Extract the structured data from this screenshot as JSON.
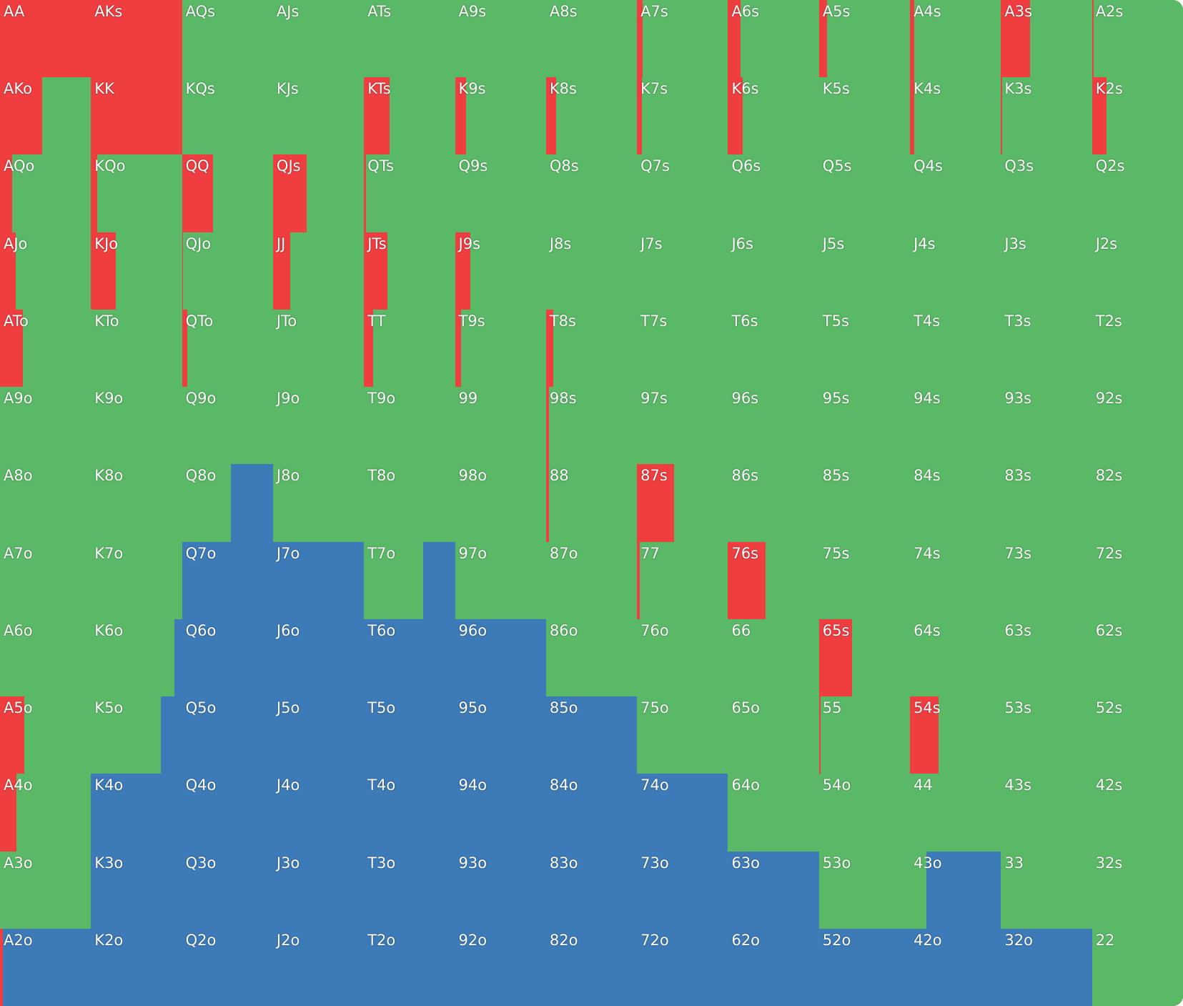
{
  "colors": {
    "raise": "#ef3d40",
    "call": "#5ab966",
    "fold": "#3d7ab8"
  },
  "grid": {
    "rows": [
      [
        {
          "hand": "AA",
          "raise": 100,
          "call": 0,
          "fold": 0
        },
        {
          "hand": "AKs",
          "raise": 100,
          "call": 0,
          "fold": 0
        },
        {
          "hand": "AQs",
          "raise": 0,
          "call": 100,
          "fold": 0
        },
        {
          "hand": "AJs",
          "raise": 0,
          "call": 100,
          "fold": 0
        },
        {
          "hand": "ATs",
          "raise": 0,
          "call": 100,
          "fold": 0
        },
        {
          "hand": "A9s",
          "raise": 0,
          "call": 100,
          "fold": 0
        },
        {
          "hand": "A8s",
          "raise": 0,
          "call": 100,
          "fold": 0
        },
        {
          "hand": "A7s",
          "raise": 6,
          "call": 94,
          "fold": 0
        },
        {
          "hand": "A6s",
          "raise": 14,
          "call": 86,
          "fold": 0
        },
        {
          "hand": "A5s",
          "raise": 9,
          "call": 91,
          "fold": 0
        },
        {
          "hand": "A4s",
          "raise": 5,
          "call": 95,
          "fold": 0
        },
        {
          "hand": "A3s",
          "raise": 32,
          "call": 68,
          "fold": 0
        },
        {
          "hand": "A2s",
          "raise": 2,
          "call": 98,
          "fold": 0
        }
      ],
      [
        {
          "hand": "AKo",
          "raise": 46,
          "call": 54,
          "fold": 0
        },
        {
          "hand": "KK",
          "raise": 100,
          "call": 0,
          "fold": 0
        },
        {
          "hand": "KQs",
          "raise": 0,
          "call": 100,
          "fold": 0
        },
        {
          "hand": "KJs",
          "raise": 0,
          "call": 100,
          "fold": 0
        },
        {
          "hand": "KTs",
          "raise": 28,
          "call": 72,
          "fold": 0
        },
        {
          "hand": "K9s",
          "raise": 12,
          "call": 88,
          "fold": 0
        },
        {
          "hand": "K8s",
          "raise": 11,
          "call": 89,
          "fold": 0
        },
        {
          "hand": "K7s",
          "raise": 5,
          "call": 95,
          "fold": 0
        },
        {
          "hand": "K6s",
          "raise": 16,
          "call": 84,
          "fold": 0
        },
        {
          "hand": "K5s",
          "raise": 0,
          "call": 100,
          "fold": 0
        },
        {
          "hand": "K4s",
          "raise": 5,
          "call": 95,
          "fold": 0
        },
        {
          "hand": "K3s",
          "raise": 1,
          "call": 99,
          "fold": 0
        },
        {
          "hand": "K2s",
          "raise": 16,
          "call": 84,
          "fold": 0
        }
      ],
      [
        {
          "hand": "AQo",
          "raise": 13,
          "call": 87,
          "fold": 0
        },
        {
          "hand": "KQo",
          "raise": 7,
          "call": 93,
          "fold": 0
        },
        {
          "hand": "QQ",
          "raise": 34,
          "call": 66,
          "fold": 0
        },
        {
          "hand": "QJs",
          "raise": 37,
          "call": 63,
          "fold": 0
        },
        {
          "hand": "QTs",
          "raise": 2,
          "call": 98,
          "fold": 0
        },
        {
          "hand": "Q9s",
          "raise": 0,
          "call": 100,
          "fold": 0
        },
        {
          "hand": "Q8s",
          "raise": 0,
          "call": 100,
          "fold": 0
        },
        {
          "hand": "Q7s",
          "raise": 0,
          "call": 100,
          "fold": 0
        },
        {
          "hand": "Q6s",
          "raise": 0,
          "call": 100,
          "fold": 0
        },
        {
          "hand": "Q5s",
          "raise": 0,
          "call": 100,
          "fold": 0
        },
        {
          "hand": "Q4s",
          "raise": 0,
          "call": 100,
          "fold": 0
        },
        {
          "hand": "Q3s",
          "raise": 0,
          "call": 100,
          "fold": 0
        },
        {
          "hand": "Q2s",
          "raise": 0,
          "call": 100,
          "fold": 0
        }
      ],
      [
        {
          "hand": "AJo",
          "raise": 17,
          "call": 83,
          "fold": 0
        },
        {
          "hand": "KJo",
          "raise": 27,
          "call": 73,
          "fold": 0
        },
        {
          "hand": "QJo",
          "raise": 1,
          "call": 99,
          "fold": 0
        },
        {
          "hand": "JJ",
          "raise": 19,
          "call": 81,
          "fold": 0
        },
        {
          "hand": "JTs",
          "raise": 26,
          "call": 74,
          "fold": 0
        },
        {
          "hand": "J9s",
          "raise": 17,
          "call": 83,
          "fold": 0
        },
        {
          "hand": "J8s",
          "raise": 0,
          "call": 100,
          "fold": 0
        },
        {
          "hand": "J7s",
          "raise": 0,
          "call": 100,
          "fold": 0
        },
        {
          "hand": "J6s",
          "raise": 0,
          "call": 100,
          "fold": 0
        },
        {
          "hand": "J5s",
          "raise": 0,
          "call": 100,
          "fold": 0
        },
        {
          "hand": "J4s",
          "raise": 0,
          "call": 100,
          "fold": 0
        },
        {
          "hand": "J3s",
          "raise": 0,
          "call": 100,
          "fold": 0
        },
        {
          "hand": "J2s",
          "raise": 0,
          "call": 100,
          "fold": 0
        }
      ],
      [
        {
          "hand": "ATo",
          "raise": 25,
          "call": 75,
          "fold": 0
        },
        {
          "hand": "KTo",
          "raise": 0,
          "call": 100,
          "fold": 0
        },
        {
          "hand": "QTo",
          "raise": 6,
          "call": 94,
          "fold": 0
        },
        {
          "hand": "JTo",
          "raise": 0,
          "call": 100,
          "fold": 0
        },
        {
          "hand": "TT",
          "raise": 10,
          "call": 90,
          "fold": 0
        },
        {
          "hand": "T9s",
          "raise": 7,
          "call": 93,
          "fold": 0
        },
        {
          "hand": "T8s",
          "raise": 8,
          "call": 92,
          "fold": 0
        },
        {
          "hand": "T7s",
          "raise": 0,
          "call": 100,
          "fold": 0
        },
        {
          "hand": "T6s",
          "raise": 0,
          "call": 100,
          "fold": 0
        },
        {
          "hand": "T5s",
          "raise": 0,
          "call": 100,
          "fold": 0
        },
        {
          "hand": "T4s",
          "raise": 0,
          "call": 100,
          "fold": 0
        },
        {
          "hand": "T3s",
          "raise": 0,
          "call": 100,
          "fold": 0
        },
        {
          "hand": "T2s",
          "raise": 0,
          "call": 100,
          "fold": 0
        }
      ],
      [
        {
          "hand": "A9o",
          "raise": 0,
          "call": 100,
          "fold": 0
        },
        {
          "hand": "K9o",
          "raise": 0,
          "call": 100,
          "fold": 0
        },
        {
          "hand": "Q9o",
          "raise": 0,
          "call": 100,
          "fold": 0
        },
        {
          "hand": "J9o",
          "raise": 0,
          "call": 100,
          "fold": 0
        },
        {
          "hand": "T9o",
          "raise": 0,
          "call": 100,
          "fold": 0
        },
        {
          "hand": "99",
          "raise": 0,
          "call": 100,
          "fold": 0
        },
        {
          "hand": "98s",
          "raise": 3,
          "call": 97,
          "fold": 0
        },
        {
          "hand": "97s",
          "raise": 0,
          "call": 100,
          "fold": 0
        },
        {
          "hand": "96s",
          "raise": 0,
          "call": 100,
          "fold": 0
        },
        {
          "hand": "95s",
          "raise": 0,
          "call": 100,
          "fold": 0
        },
        {
          "hand": "94s",
          "raise": 0,
          "call": 100,
          "fold": 0
        },
        {
          "hand": "93s",
          "raise": 0,
          "call": 100,
          "fold": 0
        },
        {
          "hand": "92s",
          "raise": 0,
          "call": 100,
          "fold": 0
        }
      ],
      [
        {
          "hand": "A8o",
          "raise": 0,
          "call": 100,
          "fold": 0
        },
        {
          "hand": "K8o",
          "raise": 0,
          "call": 100,
          "fold": 0
        },
        {
          "hand": "Q8o",
          "raise": 0,
          "call": 54,
          "fold": 46
        },
        {
          "hand": "J8o",
          "raise": 0,
          "call": 100,
          "fold": 0
        },
        {
          "hand": "T8o",
          "raise": 0,
          "call": 100,
          "fold": 0
        },
        {
          "hand": "98o",
          "raise": 0,
          "call": 100,
          "fold": 0
        },
        {
          "hand": "88",
          "raise": 3,
          "call": 97,
          "fold": 0
        },
        {
          "hand": "87s",
          "raise": 41,
          "call": 59,
          "fold": 0
        },
        {
          "hand": "86s",
          "raise": 0,
          "call": 100,
          "fold": 0
        },
        {
          "hand": "85s",
          "raise": 0,
          "call": 100,
          "fold": 0
        },
        {
          "hand": "84s",
          "raise": 0,
          "call": 100,
          "fold": 0
        },
        {
          "hand": "83s",
          "raise": 0,
          "call": 100,
          "fold": 0
        },
        {
          "hand": "82s",
          "raise": 0,
          "call": 100,
          "fold": 0
        }
      ],
      [
        {
          "hand": "A7o",
          "raise": 0,
          "call": 100,
          "fold": 0
        },
        {
          "hand": "K7o",
          "raise": 0,
          "call": 100,
          "fold": 0
        },
        {
          "hand": "Q7o",
          "raise": 0,
          "call": 0,
          "fold": 100
        },
        {
          "hand": "J7o",
          "raise": 0,
          "call": 0,
          "fold": 100
        },
        {
          "hand": "T7o",
          "raise": 0,
          "call": 65,
          "fold": 35
        },
        {
          "hand": "97o",
          "raise": 0,
          "call": 100,
          "fold": 0
        },
        {
          "hand": "87o",
          "raise": 0,
          "call": 100,
          "fold": 0
        },
        {
          "hand": "77",
          "raise": 3,
          "call": 97,
          "fold": 0
        },
        {
          "hand": "76s",
          "raise": 41,
          "call": 59,
          "fold": 0
        },
        {
          "hand": "75s",
          "raise": 0,
          "call": 100,
          "fold": 0
        },
        {
          "hand": "74s",
          "raise": 0,
          "call": 100,
          "fold": 0
        },
        {
          "hand": "73s",
          "raise": 0,
          "call": 100,
          "fold": 0
        },
        {
          "hand": "72s",
          "raise": 0,
          "call": 100,
          "fold": 0
        }
      ],
      [
        {
          "hand": "A6o",
          "raise": 0,
          "call": 100,
          "fold": 0
        },
        {
          "hand": "K6o",
          "raise": 0,
          "call": 92,
          "fold": 8
        },
        {
          "hand": "Q6o",
          "raise": 0,
          "call": 0,
          "fold": 100
        },
        {
          "hand": "J6o",
          "raise": 0,
          "call": 0,
          "fold": 100
        },
        {
          "hand": "T6o",
          "raise": 0,
          "call": 0,
          "fold": 100
        },
        {
          "hand": "96o",
          "raise": 0,
          "call": 0,
          "fold": 100
        },
        {
          "hand": "86o",
          "raise": 0,
          "call": 100,
          "fold": 0
        },
        {
          "hand": "76o",
          "raise": 0,
          "call": 100,
          "fold": 0
        },
        {
          "hand": "66",
          "raise": 0,
          "call": 100,
          "fold": 0
        },
        {
          "hand": "65s",
          "raise": 36,
          "call": 64,
          "fold": 0
        },
        {
          "hand": "64s",
          "raise": 0,
          "call": 100,
          "fold": 0
        },
        {
          "hand": "63s",
          "raise": 0,
          "call": 100,
          "fold": 0
        },
        {
          "hand": "62s",
          "raise": 0,
          "call": 100,
          "fold": 0
        }
      ],
      [
        {
          "hand": "A5o",
          "raise": 27,
          "call": 73,
          "fold": 0
        },
        {
          "hand": "K5o",
          "raise": 0,
          "call": 77,
          "fold": 23
        },
        {
          "hand": "Q5o",
          "raise": 0,
          "call": 0,
          "fold": 100
        },
        {
          "hand": "J5o",
          "raise": 0,
          "call": 0,
          "fold": 100
        },
        {
          "hand": "T5o",
          "raise": 0,
          "call": 0,
          "fold": 100
        },
        {
          "hand": "95o",
          "raise": 0,
          "call": 0,
          "fold": 100
        },
        {
          "hand": "85o",
          "raise": 0,
          "call": 0,
          "fold": 100
        },
        {
          "hand": "75o",
          "raise": 0,
          "call": 100,
          "fold": 0
        },
        {
          "hand": "65o",
          "raise": 0,
          "call": 100,
          "fold": 0
        },
        {
          "hand": "55",
          "raise": 2,
          "call": 98,
          "fold": 0
        },
        {
          "hand": "54s",
          "raise": 31,
          "call": 69,
          "fold": 0
        },
        {
          "hand": "53s",
          "raise": 0,
          "call": 100,
          "fold": 0
        },
        {
          "hand": "52s",
          "raise": 0,
          "call": 100,
          "fold": 0
        }
      ],
      [
        {
          "hand": "A4o",
          "raise": 18,
          "call": 82,
          "fold": 0
        },
        {
          "hand": "K4o",
          "raise": 0,
          "call": 0,
          "fold": 100
        },
        {
          "hand": "Q4o",
          "raise": 0,
          "call": 0,
          "fold": 100
        },
        {
          "hand": "J4o",
          "raise": 0,
          "call": 0,
          "fold": 100
        },
        {
          "hand": "T4o",
          "raise": 0,
          "call": 0,
          "fold": 100
        },
        {
          "hand": "94o",
          "raise": 0,
          "call": 0,
          "fold": 100
        },
        {
          "hand": "84o",
          "raise": 0,
          "call": 0,
          "fold": 100
        },
        {
          "hand": "74o",
          "raise": 0,
          "call": 0,
          "fold": 100
        },
        {
          "hand": "64o",
          "raise": 0,
          "call": 100,
          "fold": 0
        },
        {
          "hand": "54o",
          "raise": 0,
          "call": 100,
          "fold": 0
        },
        {
          "hand": "44",
          "raise": 0,
          "call": 100,
          "fold": 0
        },
        {
          "hand": "43s",
          "raise": 0,
          "call": 100,
          "fold": 0
        },
        {
          "hand": "42s",
          "raise": 0,
          "call": 100,
          "fold": 0
        }
      ],
      [
        {
          "hand": "A3o",
          "raise": 0,
          "call": 100,
          "fold": 0
        },
        {
          "hand": "K3o",
          "raise": 0,
          "call": 0,
          "fold": 100
        },
        {
          "hand": "Q3o",
          "raise": 0,
          "call": 0,
          "fold": 100
        },
        {
          "hand": "J3o",
          "raise": 0,
          "call": 0,
          "fold": 100
        },
        {
          "hand": "T3o",
          "raise": 0,
          "call": 0,
          "fold": 100
        },
        {
          "hand": "93o",
          "raise": 0,
          "call": 0,
          "fold": 100
        },
        {
          "hand": "83o",
          "raise": 0,
          "call": 0,
          "fold": 100
        },
        {
          "hand": "73o",
          "raise": 0,
          "call": 0,
          "fold": 100
        },
        {
          "hand": "63o",
          "raise": 0,
          "call": 0,
          "fold": 100
        },
        {
          "hand": "53o",
          "raise": 0,
          "call": 100,
          "fold": 0
        },
        {
          "hand": "43o",
          "raise": 0,
          "call": 18,
          "fold": 82
        },
        {
          "hand": "33",
          "raise": 0,
          "call": 100,
          "fold": 0
        },
        {
          "hand": "32s",
          "raise": 0,
          "call": 100,
          "fold": 0
        }
      ],
      [
        {
          "hand": "A2o",
          "raise": 3,
          "call": 0,
          "fold": 97
        },
        {
          "hand": "K2o",
          "raise": 0,
          "call": 0,
          "fold": 100
        },
        {
          "hand": "Q2o",
          "raise": 0,
          "call": 0,
          "fold": 100
        },
        {
          "hand": "J2o",
          "raise": 0,
          "call": 0,
          "fold": 100
        },
        {
          "hand": "T2o",
          "raise": 0,
          "call": 0,
          "fold": 100
        },
        {
          "hand": "92o",
          "raise": 0,
          "call": 0,
          "fold": 100
        },
        {
          "hand": "82o",
          "raise": 0,
          "call": 0,
          "fold": 100
        },
        {
          "hand": "72o",
          "raise": 0,
          "call": 0,
          "fold": 100
        },
        {
          "hand": "62o",
          "raise": 0,
          "call": 0,
          "fold": 100
        },
        {
          "hand": "52o",
          "raise": 0,
          "call": 0,
          "fold": 100
        },
        {
          "hand": "42o",
          "raise": 0,
          "call": 0,
          "fold": 100
        },
        {
          "hand": "32o",
          "raise": 0,
          "call": 0,
          "fold": 100
        },
        {
          "hand": "22",
          "raise": 0,
          "call": 100,
          "fold": 0
        }
      ]
    ]
  }
}
